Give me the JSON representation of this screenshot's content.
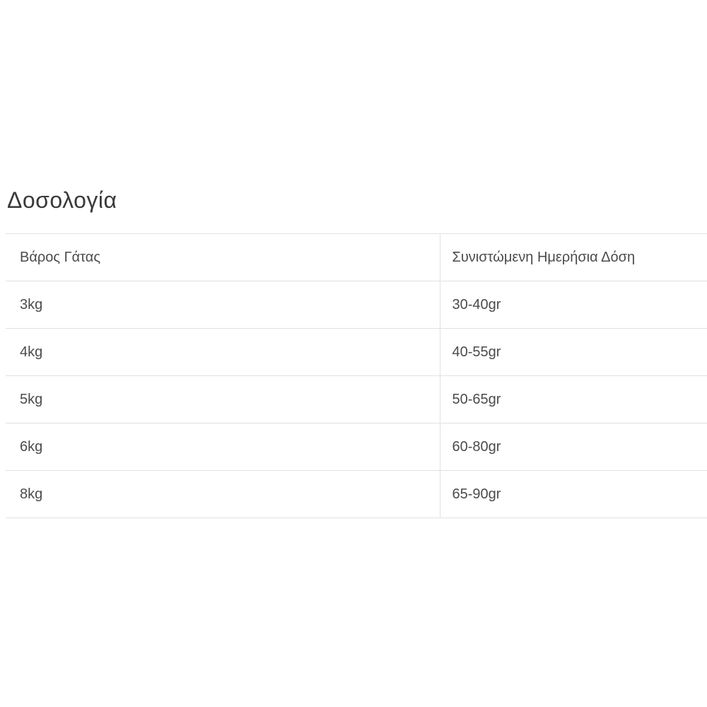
{
  "page": {
    "title": "Δοσολογία"
  },
  "table": {
    "columns": [
      {
        "label": "Βάρος Γάτας"
      },
      {
        "label": "Συνιστώμενη Ημερήσια Δόση"
      }
    ],
    "rows": [
      {
        "weight": "3kg",
        "dose": "30-40gr"
      },
      {
        "weight": "4kg",
        "dose": "40-55gr"
      },
      {
        "weight": "5kg",
        "dose": "50-65gr"
      },
      {
        "weight": "6kg",
        "dose": "60-80gr"
      },
      {
        "weight": "8kg",
        "dose": "65-90gr"
      }
    ]
  },
  "colors": {
    "background": "#ffffff",
    "heading": "#3a3a3c",
    "text": "#4b4b4d",
    "border": "#e1e1e1"
  }
}
